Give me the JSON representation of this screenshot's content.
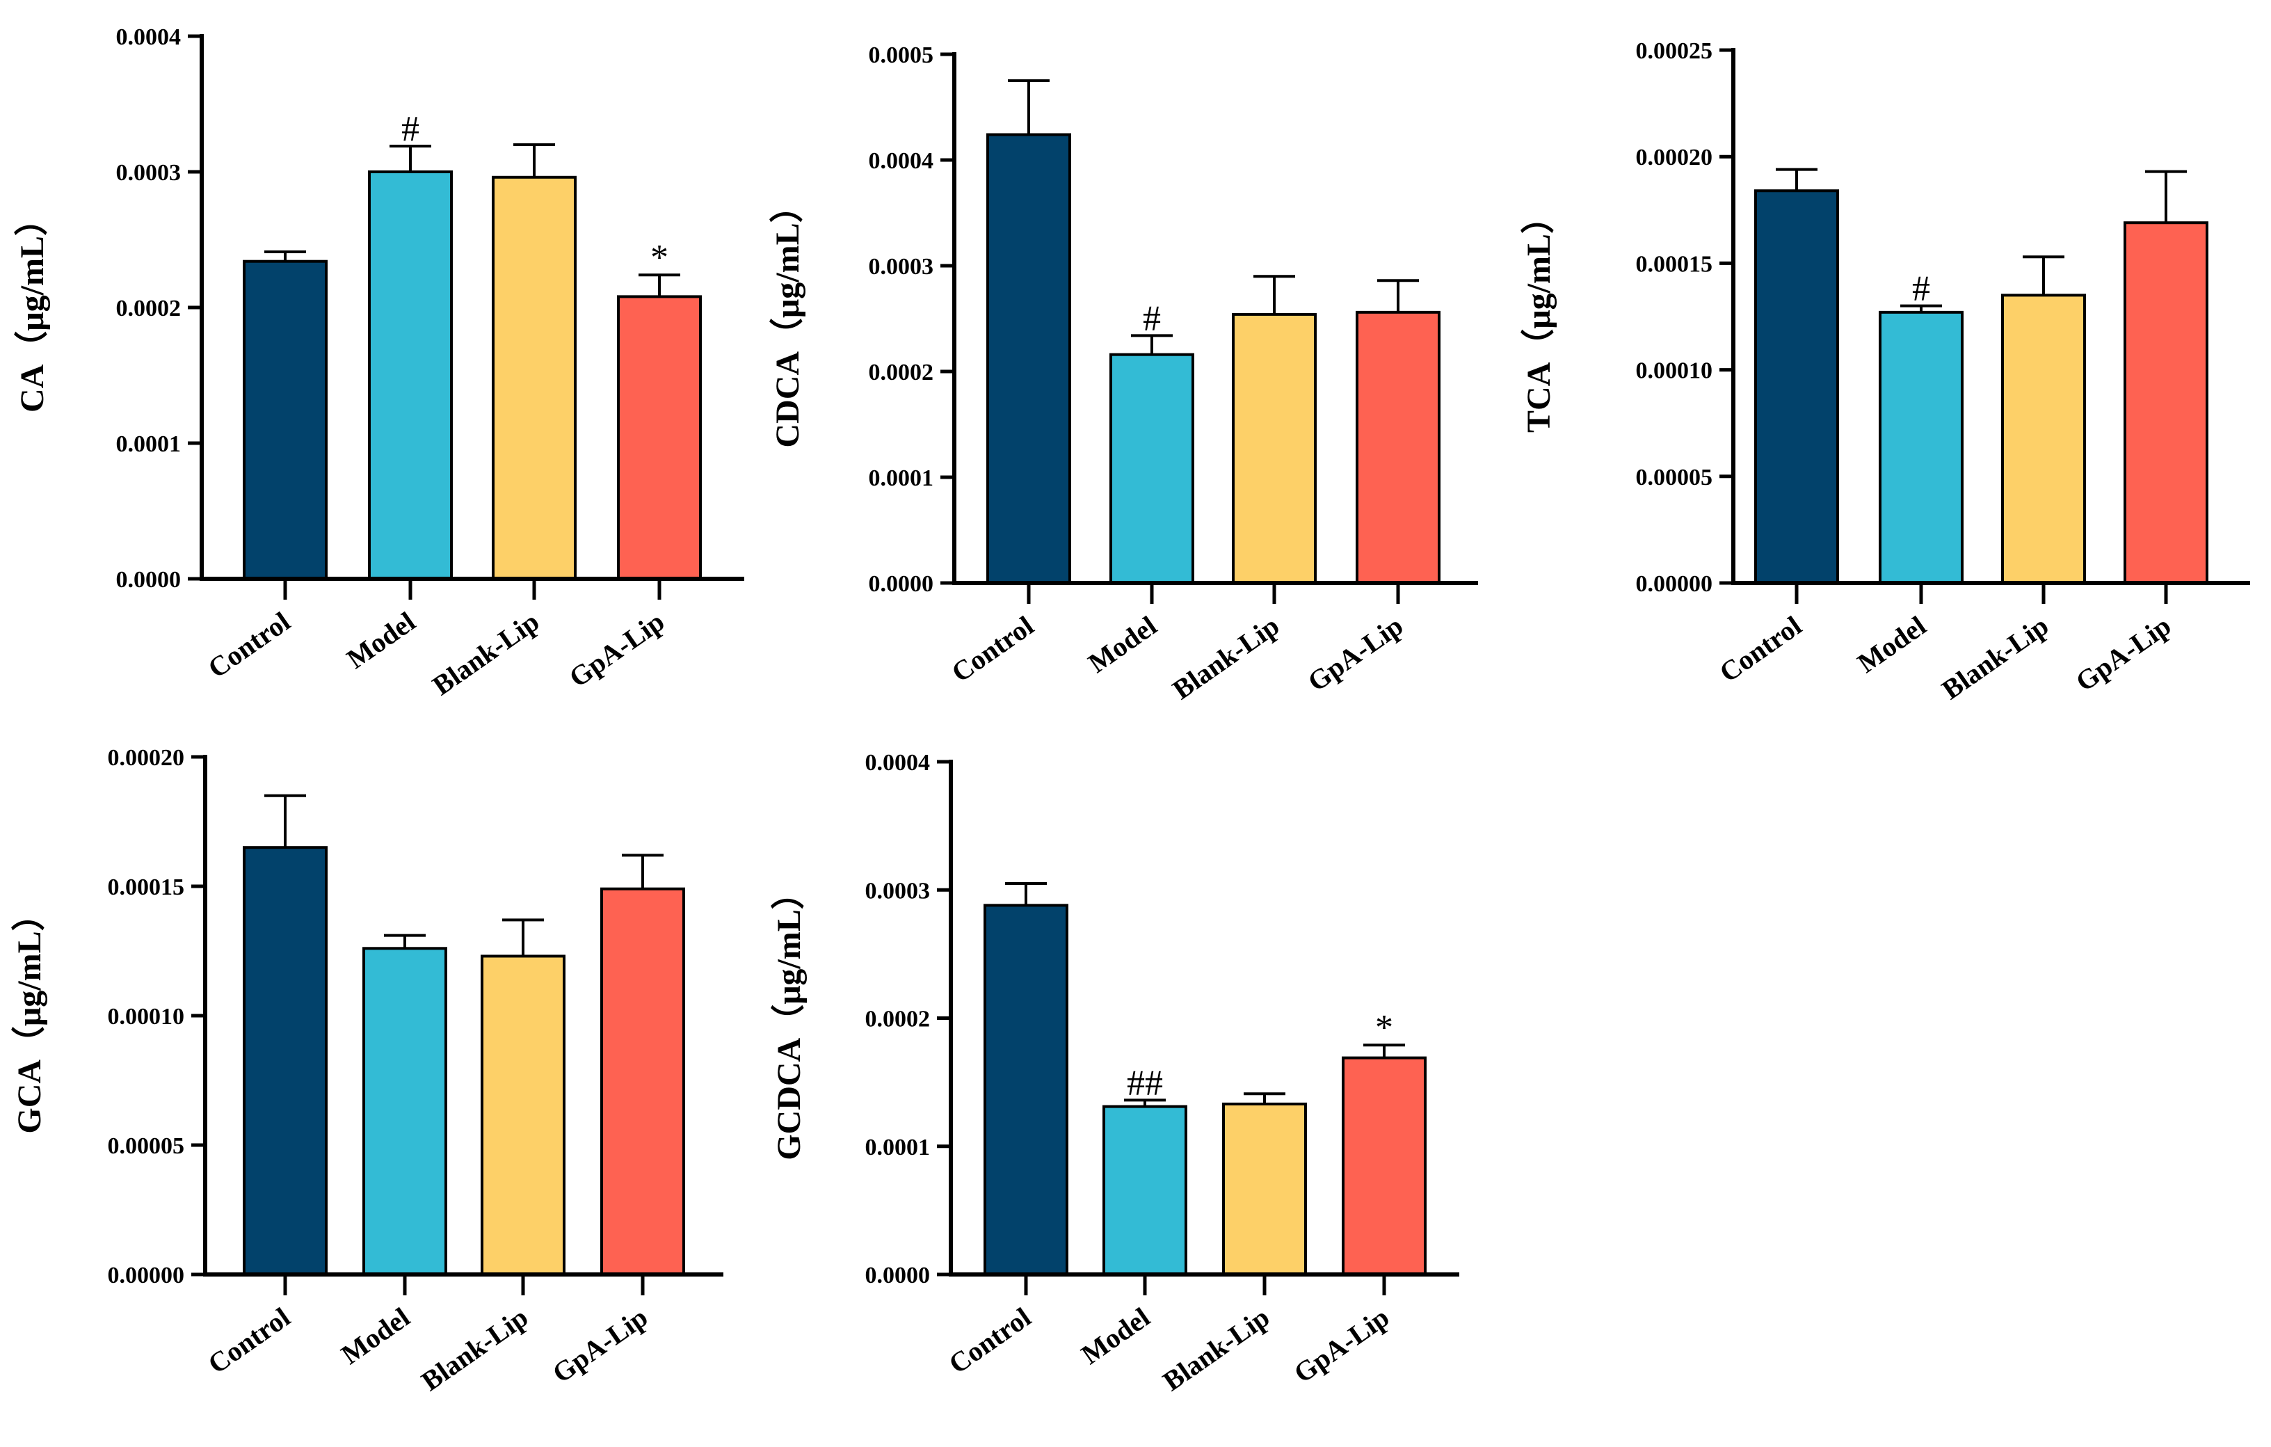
{
  "chart_data": [
    {
      "type": "bar",
      "ylabel": "CA（μg/mL）",
      "categories": [
        "Control",
        "Model",
        "Blank-Lip",
        "GpA-Lip"
      ],
      "values": [
        0.000234,
        0.0003,
        0.000296,
        0.000208
      ],
      "errors": [
        7e-06,
        1.9e-05,
        2.4e-05,
        1.6e-05
      ],
      "significance": [
        "",
        "#",
        "",
        "*"
      ],
      "ylim": [
        0,
        0.0004
      ],
      "yticks": [
        "0.0000",
        "0.0001",
        "0.0002",
        "0.0003",
        "0.0004"
      ],
      "yticks_values": [
        0,
        0.0001,
        0.0002,
        0.0003,
        0.0004
      ]
    },
    {
      "type": "bar",
      "ylabel": "CDCA（μg/mL）",
      "categories": [
        "Control",
        "Model",
        "Blank-Lip",
        "GpA-Lip"
      ],
      "values": [
        0.000424,
        0.000216,
        0.000254,
        0.000256
      ],
      "errors": [
        5.1e-05,
        1.8e-05,
        3.6e-05,
        3e-05
      ],
      "significance": [
        "",
        "#",
        "",
        ""
      ],
      "ylim": [
        0,
        0.0005
      ],
      "yticks": [
        "0.0000",
        "0.0001",
        "0.0002",
        "0.0003",
        "0.0004",
        "0.0005"
      ],
      "yticks_values": [
        0,
        0.0001,
        0.0002,
        0.0003,
        0.0004,
        0.0005
      ]
    },
    {
      "type": "bar",
      "ylabel": "TCA（μg/mL）",
      "categories": [
        "Control",
        "Model",
        "Blank-Lip",
        "GpA-Lip"
      ],
      "values": [
        0.000184,
        0.000127,
        0.000135,
        0.000169
      ],
      "errors": [
        1e-05,
        3e-06,
        1.8e-05,
        2.4e-05
      ],
      "significance": [
        "",
        "#",
        "",
        ""
      ],
      "ylim": [
        0,
        0.00025
      ],
      "yticks": [
        "0.00000",
        "0.00005",
        "0.00010",
        "0.00015",
        "0.00020",
        "0.00025"
      ],
      "yticks_values": [
        0,
        5e-05,
        0.0001,
        0.00015,
        0.0002,
        0.00025
      ]
    },
    {
      "type": "bar",
      "ylabel": "GCA（μg/mL）",
      "categories": [
        "Control",
        "Model",
        "Blank-Lip",
        "GpA-Lip"
      ],
      "values": [
        0.000165,
        0.000126,
        0.000123,
        0.000149
      ],
      "errors": [
        2e-05,
        5e-06,
        1.4e-05,
        1.3e-05
      ],
      "significance": [
        "",
        "",
        "",
        ""
      ],
      "ylim": [
        0,
        0.0002
      ],
      "yticks": [
        "0.00000",
        "0.00005",
        "0.00010",
        "0.00015",
        "0.00020"
      ],
      "yticks_values": [
        0,
        5e-05,
        0.0001,
        0.00015,
        0.0002
      ]
    },
    {
      "type": "bar",
      "ylabel": "GCDCA（μg/mL）",
      "categories": [
        "Control",
        "Model",
        "Blank-Lip",
        "GpA-Lip"
      ],
      "values": [
        0.000288,
        0.000131,
        0.000133,
        0.000169
      ],
      "errors": [
        1.7e-05,
        5e-06,
        8e-06,
        1e-05
      ],
      "significance": [
        "",
        "##",
        "",
        "*"
      ],
      "ylim": [
        0,
        0.0004
      ],
      "yticks": [
        "0.0000",
        "0.0001",
        "0.0002",
        "0.0003",
        "0.0004"
      ],
      "yticks_values": [
        0,
        0.0001,
        0.0002,
        0.0003,
        0.0004
      ]
    }
  ],
  "colors": {
    "Control": "#02426b",
    "Model": "#33bbd5",
    "Blank-Lip": "#fdd068",
    "GpA-Lip": "#fe6252"
  }
}
